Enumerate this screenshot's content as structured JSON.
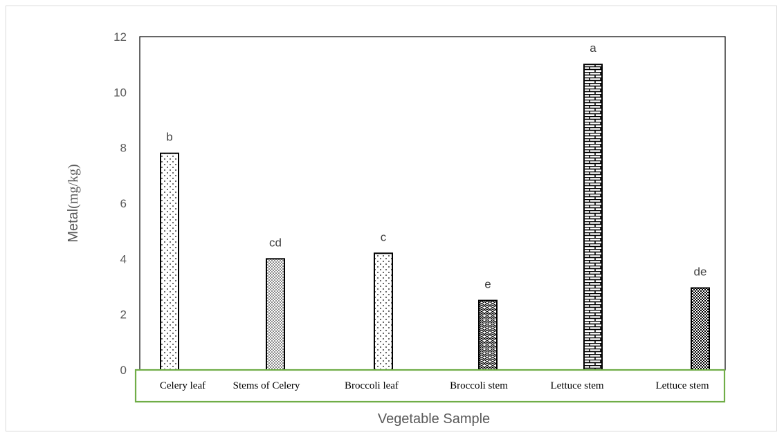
{
  "chart_data": {
    "type": "bar",
    "title": "",
    "xlabel": "Vegetable Sample",
    "ylabel_main": "Metal",
    "ylabel_unit": "(mg/kg)",
    "ylim": [
      0,
      12
    ],
    "yticks": [
      "0",
      "2",
      "4",
      "6",
      "8",
      "10",
      "12"
    ],
    "categories": [
      "Celery leaf",
      "Stems of Celery",
      "Broccoli leaf",
      "Broccoli stem",
      "Lettuce stem",
      "Lettuce stem"
    ],
    "values": [
      7.8,
      4.0,
      4.2,
      2.5,
      11.0,
      2.95
    ],
    "significance_labels": [
      "b",
      "cd",
      "c",
      "e",
      "a",
      "de"
    ],
    "bar_patterns": [
      "sparse-dots",
      "dense-dots",
      "sparse-dots",
      "zigzag",
      "brick",
      "checker"
    ],
    "category_box_color": "#70ad47",
    "bar_stroke_color": "#000000",
    "grid": false,
    "legend": "none"
  }
}
